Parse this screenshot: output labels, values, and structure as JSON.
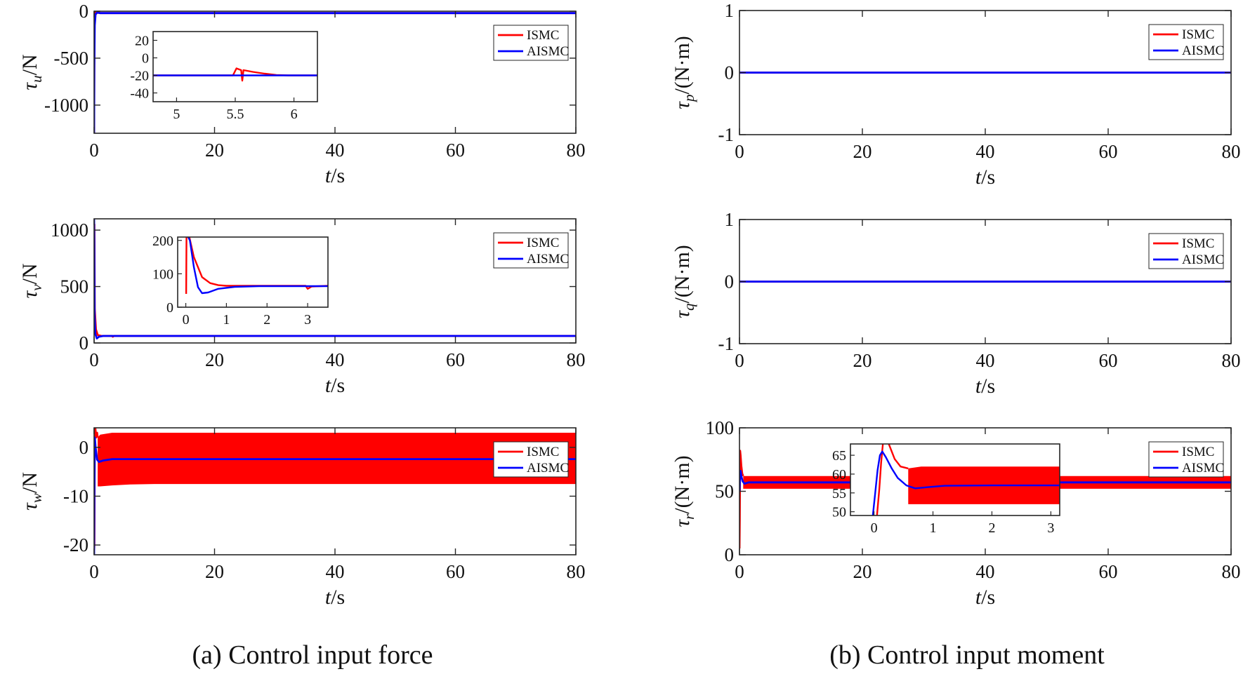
{
  "captions": {
    "a": "(a)  Control input force",
    "b": "(b)  Control input moment"
  },
  "legend": {
    "series1": "ISMC",
    "series2": "AISMC"
  },
  "colors": {
    "ISMC": "#ff0000",
    "AISMC": "#0000ff",
    "axes": "#262626"
  },
  "chart_data": [
    {
      "id": "tau_u",
      "type": "line",
      "ylabel_main": "τ",
      "ylabel_sub": "u",
      "ylabel_unit": "/N",
      "xlabel_main": "t",
      "xlabel_unit": "/s",
      "xlim": [
        0,
        80
      ],
      "ylim": [
        -1300,
        0
      ],
      "xticks": [
        0,
        20,
        40,
        60,
        80
      ],
      "xtick_labels": [
        "0",
        "20",
        "40",
        "60",
        "80"
      ],
      "yticks": [
        0,
        -500,
        -1000
      ],
      "ytick_labels": [
        "0",
        "-500",
        "-1000"
      ],
      "series": [
        {
          "name": "ISMC",
          "x": [
            0,
            0.05,
            0.12,
            0.3,
            0.6,
            1,
            80
          ],
          "y": [
            -1300,
            -200,
            0,
            -30,
            -10,
            -20,
            -20
          ]
        },
        {
          "name": "AISMC",
          "x": [
            0,
            0.03,
            0.1,
            0.25,
            0.5,
            1,
            80
          ],
          "y": [
            -1300,
            -600,
            -150,
            -30,
            -15,
            -20,
            -20
          ]
        }
      ],
      "inset": {
        "xlim": [
          4.8,
          6.2
        ],
        "ylim": [
          -50,
          30
        ],
        "xticks": [
          5,
          5.5,
          6
        ],
        "xtick_labels": [
          "5",
          "5.5",
          "6"
        ],
        "yticks": [
          20,
          0,
          -20,
          -40
        ],
        "ytick_labels": [
          "20",
          "0",
          "-20",
          "-40"
        ],
        "series": [
          {
            "name": "ISMC",
            "x": [
              4.8,
              5.48,
              5.51,
              5.55,
              5.56,
              5.57,
              5.65,
              5.75,
              5.85,
              5.95,
              6.2
            ],
            "y": [
              -20,
              -20,
              -12,
              -14,
              -26,
              -14,
              -16,
              -18,
              -19.5,
              -20,
              -20
            ]
          },
          {
            "name": "AISMC",
            "x": [
              4.8,
              6.2
            ],
            "y": [
              -20,
              -20
            ]
          }
        ]
      }
    },
    {
      "id": "tau_v",
      "type": "line",
      "ylabel_main": "τ",
      "ylabel_sub": "v",
      "ylabel_unit": "/N",
      "xlabel_main": "t",
      "xlabel_unit": "/s",
      "xlim": [
        0,
        80
      ],
      "ylim": [
        0,
        1100
      ],
      "xticks": [
        0,
        20,
        40,
        60,
        80
      ],
      "xtick_labels": [
        "0",
        "20",
        "40",
        "60",
        "80"
      ],
      "yticks": [
        0,
        500,
        1000
      ],
      "ytick_labels": [
        "0",
        "500",
        "1000"
      ],
      "series": [
        {
          "name": "ISMC",
          "x": [
            0,
            0.05,
            0.1,
            0.3,
            0.6,
            1.2,
            3,
            3.1,
            3.3,
            80
          ],
          "y": [
            400,
            1050,
            300,
            120,
            70,
            62,
            62,
            55,
            62,
            62
          ]
        },
        {
          "name": "AISMC",
          "x": [
            0,
            0.03,
            0.08,
            0.2,
            0.45,
            0.8,
            1.5,
            3,
            80
          ],
          "y": [
            1100,
            900,
            250,
            80,
            40,
            55,
            62,
            62,
            62
          ]
        }
      ],
      "inset": {
        "xlim": [
          -0.2,
          3.5
        ],
        "ylim": [
          0,
          210
        ],
        "xticks": [
          0,
          1,
          2,
          3
        ],
        "xtick_labels": [
          "0",
          "1",
          "2",
          "3"
        ],
        "yticks": [
          200,
          100,
          0
        ],
        "ytick_labels": [
          "200",
          "100",
          "0"
        ],
        "series": [
          {
            "name": "ISMC",
            "x": [
              0.01,
              0.02,
              0.05,
              0.2,
              0.4,
              0.6,
              0.8,
              1,
              1.5,
              2.95,
              3.0,
              3.1,
              3.5
            ],
            "y": [
              40,
              260,
              230,
              150,
              90,
              72,
              66,
              64,
              64,
              64,
              55,
              62,
              64
            ]
          },
          {
            "name": "AISMC",
            "x": [
              0.02,
              0.1,
              0.2,
              0.3,
              0.4,
              0.55,
              0.8,
              1.2,
              1.8,
              3.5
            ],
            "y": [
              220,
              200,
              120,
              60,
              42,
              44,
              55,
              61,
              63,
              63
            ]
          }
        ]
      }
    },
    {
      "id": "tau_w",
      "type": "line",
      "ylabel_main": "τ",
      "ylabel_sub": "w",
      "ylabel_unit": "/N",
      "xlabel_main": "t",
      "xlabel_unit": "/s",
      "xlim": [
        0,
        80
      ],
      "ylim": [
        -22,
        4
      ],
      "xticks": [
        0,
        20,
        40,
        60,
        80
      ],
      "xtick_labels": [
        "0",
        "20",
        "40",
        "60",
        "80"
      ],
      "yticks": [
        0,
        -10,
        -20
      ],
      "ytick_labels": [
        "0",
        "-10",
        "-20"
      ],
      "band": {
        "name": "ISMC",
        "x": [
          0.6,
          1,
          3,
          6,
          10,
          30,
          80
        ],
        "upper": [
          2,
          2.6,
          3,
          3,
          3,
          3,
          3
        ],
        "lower": [
          -8,
          -8,
          -7.8,
          -7.6,
          -7.5,
          -7.5,
          -7.5
        ]
      },
      "series": [
        {
          "name": "ISMC",
          "x": [
            0,
            0.05,
            0.1,
            0.2,
            0.35,
            0.5,
            0.6
          ],
          "y": [
            -21,
            -20,
            3,
            4,
            2,
            3,
            2
          ]
        },
        {
          "name": "AISMC",
          "x": [
            0,
            0.05,
            0.12,
            0.25,
            0.5,
            0.8,
            1.5,
            3,
            80
          ],
          "y": [
            -22,
            -10,
            2,
            0,
            -2.5,
            -3,
            -2.7,
            -2.4,
            -2.4
          ]
        }
      ]
    },
    {
      "id": "tau_p",
      "type": "line",
      "ylabel_main": "τ",
      "ylabel_sub": "p",
      "ylabel_unit": "/(N·m)",
      "xlabel_main": "t",
      "xlabel_unit": "/s",
      "xlim": [
        0,
        80
      ],
      "ylim": [
        -1,
        1
      ],
      "xticks": [
        0,
        20,
        40,
        60,
        80
      ],
      "xtick_labels": [
        "0",
        "20",
        "40",
        "60",
        "80"
      ],
      "yticks": [
        1,
        0,
        -1
      ],
      "ytick_labels": [
        "1",
        "0",
        "-1"
      ],
      "series": [
        {
          "name": "ISMC",
          "x": [
            0,
            80
          ],
          "y": [
            0,
            0
          ]
        },
        {
          "name": "AISMC",
          "x": [
            0,
            80
          ],
          "y": [
            0,
            0
          ]
        }
      ]
    },
    {
      "id": "tau_q",
      "type": "line",
      "ylabel_main": "τ",
      "ylabel_sub": "q",
      "ylabel_unit": "/(N·m)",
      "xlabel_main": "t",
      "xlabel_unit": "/s",
      "xlim": [
        0,
        80
      ],
      "ylim": [
        -1,
        1
      ],
      "xticks": [
        0,
        20,
        40,
        60,
        80
      ],
      "xtick_labels": [
        "0",
        "20",
        "40",
        "60",
        "80"
      ],
      "yticks": [
        1,
        0,
        -1
      ],
      "ytick_labels": [
        "1",
        "0",
        "-1"
      ],
      "series": [
        {
          "name": "ISMC",
          "x": [
            0,
            80
          ],
          "y": [
            0,
            0
          ]
        },
        {
          "name": "AISMC",
          "x": [
            0,
            80
          ],
          "y": [
            0,
            0
          ]
        }
      ]
    },
    {
      "id": "tau_r",
      "type": "line",
      "ylabel_main": "τ",
      "ylabel_sub": "r",
      "ylabel_unit": "/(N·m)",
      "xlabel_main": "t",
      "xlabel_unit": "/s",
      "xlim": [
        0,
        80
      ],
      "ylim": [
        0,
        100
      ],
      "xticks": [
        0,
        20,
        40,
        60,
        80
      ],
      "xtick_labels": [
        "0",
        "20",
        "40",
        "60",
        "80"
      ],
      "yticks": [
        100,
        50,
        0
      ],
      "ytick_labels": [
        "100",
        "50",
        "0"
      ],
      "band": {
        "name": "ISMC",
        "x": [
          0.6,
          80
        ],
        "upper": [
          62,
          62
        ],
        "lower": [
          52,
          52
        ]
      },
      "series": [
        {
          "name": "ISMC",
          "x": [
            0,
            0.05,
            0.1,
            0.18,
            0.3,
            0.45,
            0.6
          ],
          "y": [
            5,
            28,
            82,
            78,
            70,
            64,
            62
          ]
        },
        {
          "name": "AISMC",
          "x": [
            0,
            0.05,
            0.1,
            0.18,
            0.3,
            0.5,
            0.8,
            1.5,
            3,
            80
          ],
          "y": [
            50,
            55,
            64,
            66,
            62,
            58,
            56,
            57,
            57,
            57
          ]
        }
      ],
      "inset": {
        "xlim": [
          -0.4,
          3.15
        ],
        "ylim": [
          49,
          68
        ],
        "xticks": [
          0,
          1,
          2,
          3
        ],
        "xtick_labels": [
          "0",
          "1",
          "2",
          "3"
        ],
        "yticks": [
          65,
          60,
          55,
          50
        ],
        "ytick_labels": [
          "65",
          "60",
          "55",
          "50"
        ],
        "band": {
          "name": "ISMC",
          "x": [
            0.58,
            0.8,
            1.5,
            3.15
          ],
          "upper": [
            61.5,
            62,
            62,
            62
          ],
          "lower": [
            52,
            52,
            52,
            52
          ]
        },
        "series": [
          {
            "name": "ISMC",
            "x": [
              0.05,
              0.09,
              0.12,
              0.15,
              0.18,
              0.25,
              0.35,
              0.45,
              0.58
            ],
            "y": [
              49,
              56,
              63,
              68,
              72,
              68,
              64,
              62,
              61.5
            ]
          },
          {
            "name": "AISMC",
            "x": [
              -0.02,
              0.02,
              0.06,
              0.1,
              0.14,
              0.2,
              0.3,
              0.4,
              0.55,
              0.7,
              0.9,
              1.2,
              2,
              3.15
            ],
            "y": [
              49,
              55,
              61,
              65,
              66,
              64.5,
              61.5,
              59,
              57,
              56.2,
              56.5,
              56.9,
              57,
              57
            ]
          }
        ]
      }
    }
  ]
}
